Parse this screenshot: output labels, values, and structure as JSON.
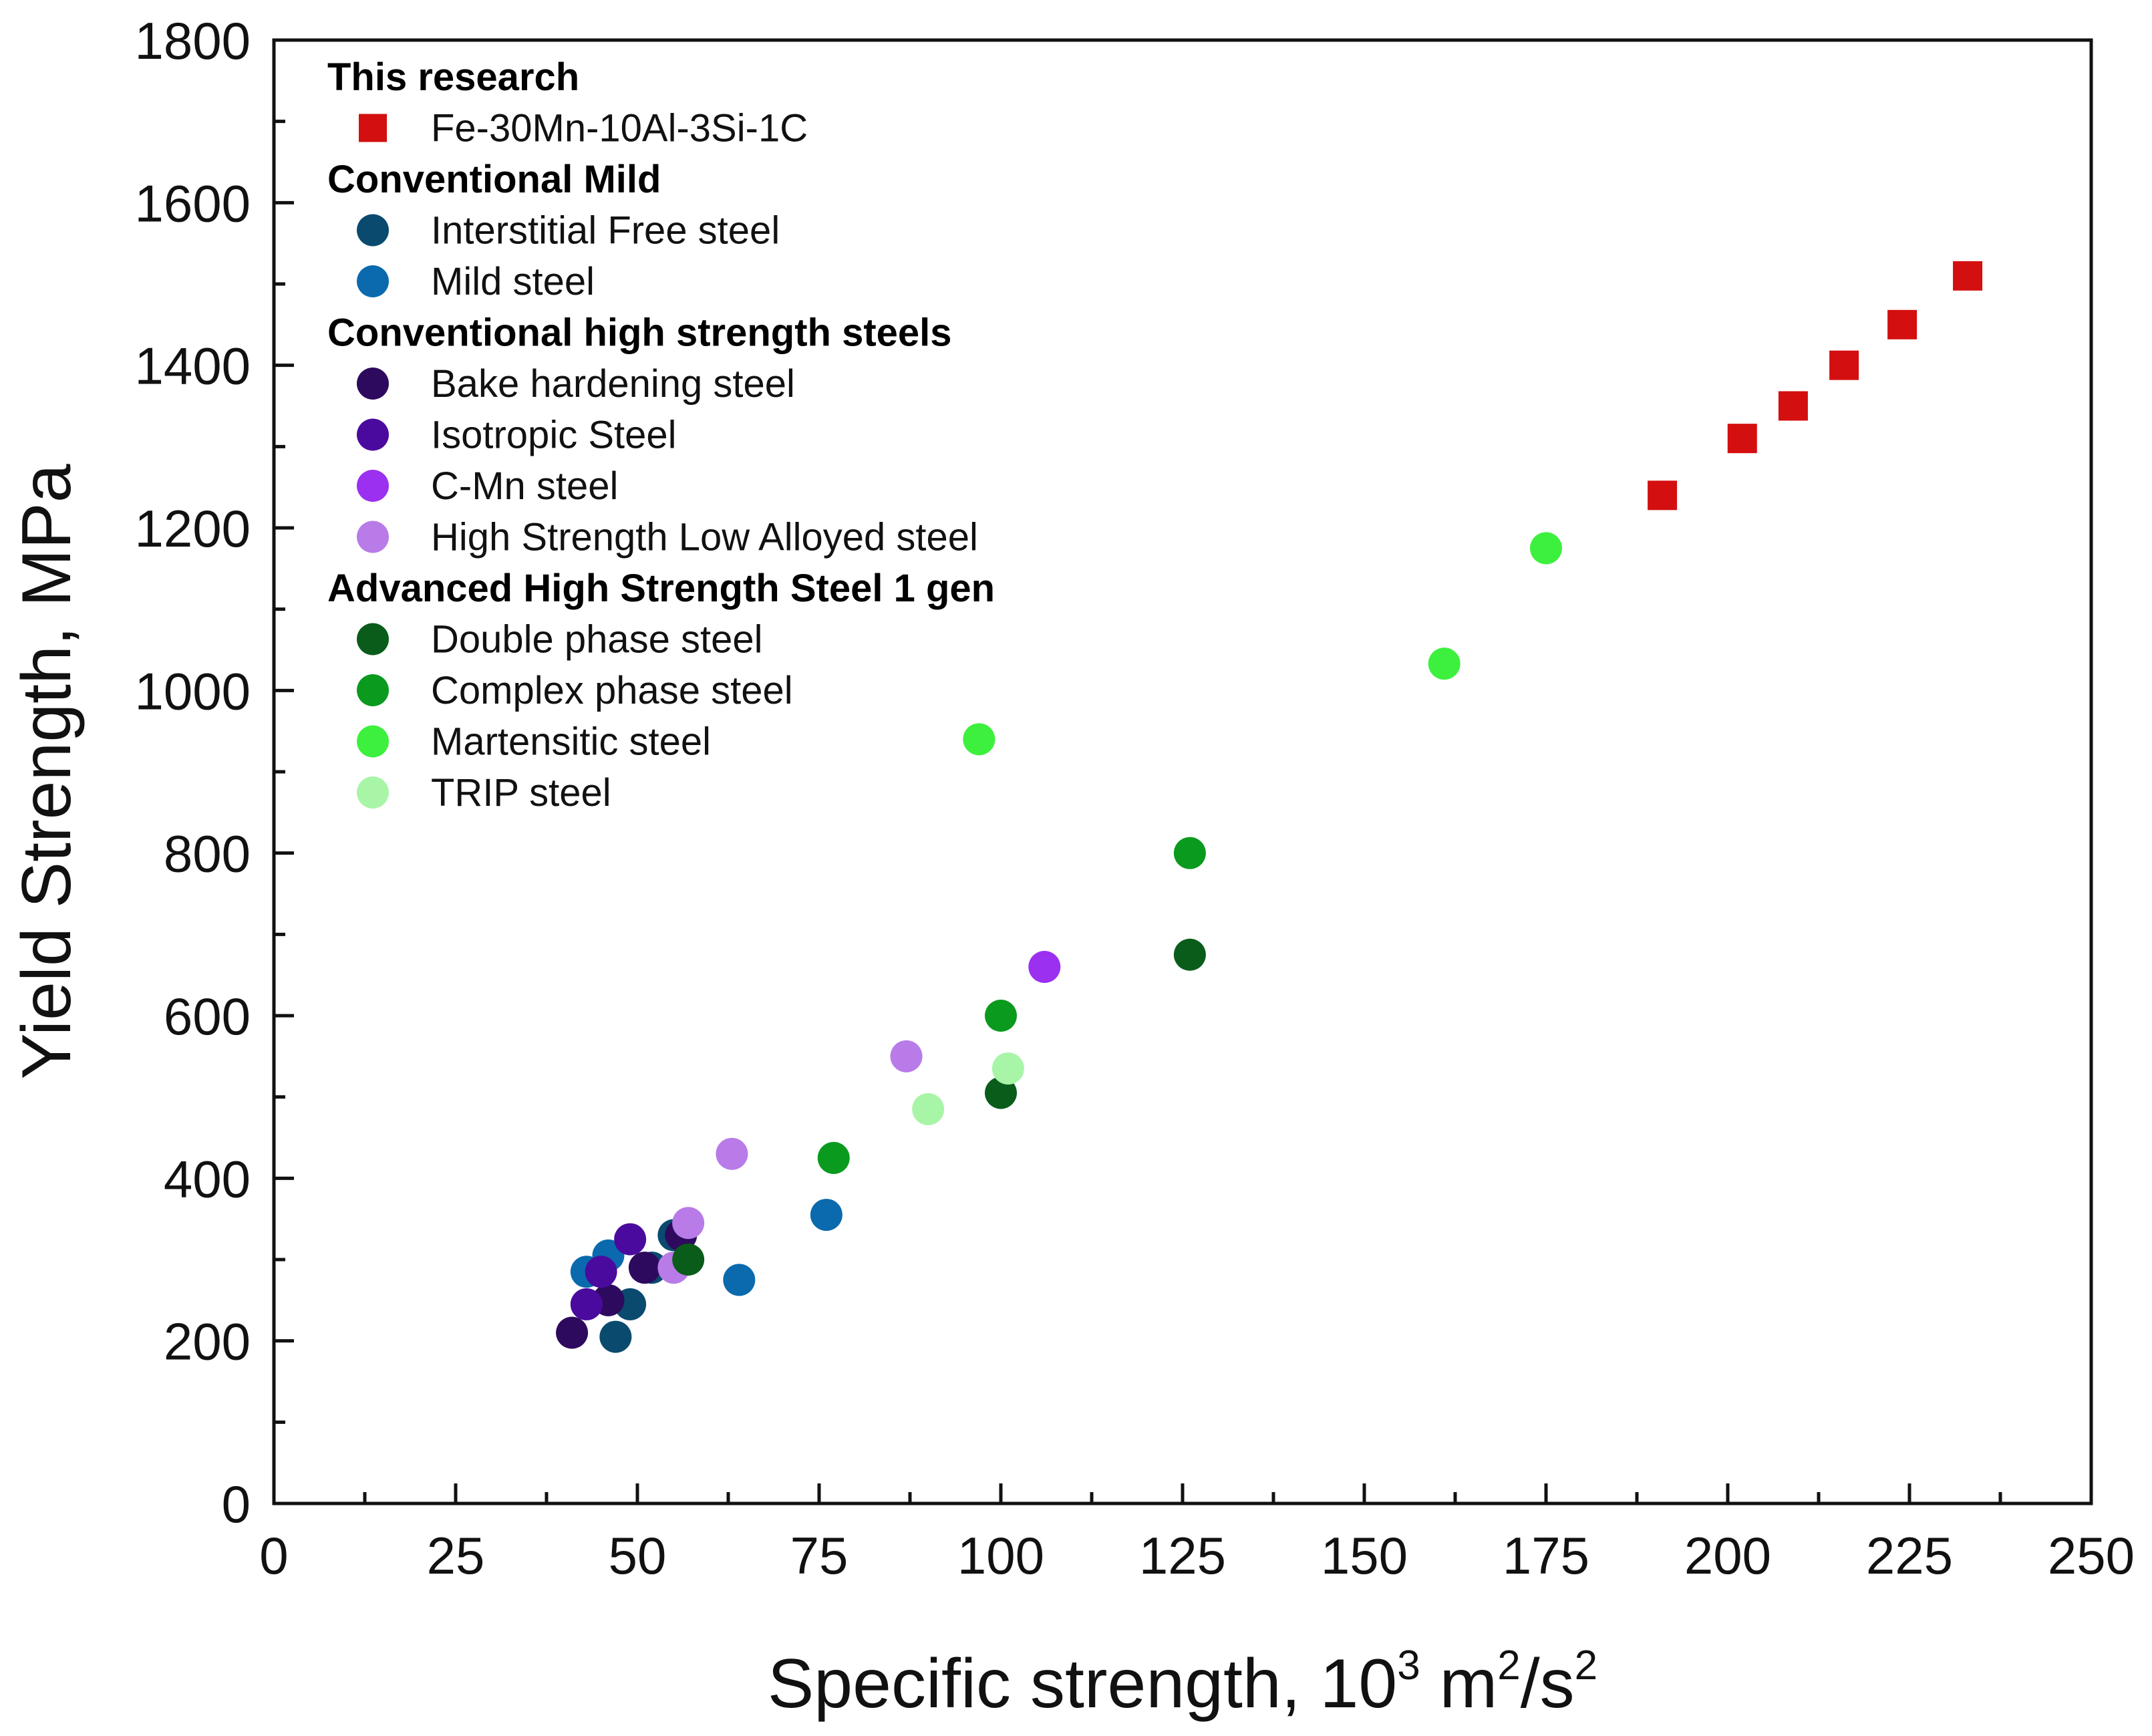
{
  "chart_data": {
    "type": "scatter",
    "title": "",
    "xlabel": "Specific strength, 10",
    "xlabel_sup1": "3",
    "xlabel_mid": " m",
    "xlabel_sup2": "2",
    "xlabel_mid2": "/s",
    "xlabel_sup3": "2",
    "ylabel": "Yield Strength, MPa",
    "xlim": [
      0,
      250
    ],
    "ylim": [
      0,
      1800
    ],
    "xticks": [
      0,
      25,
      50,
      75,
      100,
      125,
      150,
      175,
      200,
      225,
      250
    ],
    "yticks": [
      0,
      200,
      400,
      600,
      800,
      1000,
      1200,
      1400,
      1600,
      1800
    ],
    "xtick_labels": [
      "0",
      "25",
      "50",
      "75",
      "100",
      "125",
      "150",
      "175",
      "200",
      "225",
      "250"
    ],
    "ytick_labels": [
      "0",
      "200",
      "400",
      "600",
      "800",
      "1000",
      "1200",
      "1400",
      "1600",
      "1800"
    ],
    "legend_position": "top-left",
    "groups": [
      {
        "name": "This research",
        "series": [
          {
            "name": "Fe-30Mn-10Al-3Si-1C",
            "marker": "square",
            "color": "#d40f0f",
            "points": [
              [
                191,
                1240
              ],
              [
                202,
                1310
              ],
              [
                209,
                1350
              ],
              [
                216,
                1400
              ],
              [
                224,
                1450
              ],
              [
                233,
                1510
              ]
            ]
          }
        ]
      },
      {
        "name": "Conventional Mild",
        "series": [
          {
            "name": "Interstitial Free steel",
            "marker": "circle",
            "color": "#0a4a6e",
            "points": [
              [
                47,
                205
              ],
              [
                49,
                245
              ],
              [
                52,
                290
              ],
              [
                55,
                330
              ]
            ]
          },
          {
            "name": "Mild steel",
            "marker": "circle",
            "color": "#0a6aad",
            "points": [
              [
                43,
                285
              ],
              [
                46,
                305
              ],
              [
                64,
                275
              ],
              [
                76,
                355
              ]
            ]
          }
        ]
      },
      {
        "name": "Conventional high strength steels",
        "series": [
          {
            "name": "Bake hardening steel",
            "marker": "circle",
            "color": "#2d0a5e",
            "points": [
              [
                41,
                210
              ],
              [
                46,
                250
              ],
              [
                51,
                290
              ],
              [
                56,
                330
              ]
            ]
          },
          {
            "name": "Isotropic Steel",
            "marker": "circle",
            "color": "#4b0a9e",
            "points": [
              [
                43,
                245
              ],
              [
                45,
                285
              ],
              [
                49,
                325
              ]
            ]
          },
          {
            "name": "C-Mn steel",
            "marker": "circle",
            "color": "#9b30f0",
            "points": [
              [
                106,
                660
              ]
            ]
          },
          {
            "name": "High Strength Low Alloyed steel",
            "marker": "circle",
            "color": "#b87be8",
            "points": [
              [
                55,
                290
              ],
              [
                57,
                345
              ],
              [
                63,
                430
              ],
              [
                87,
                550
              ]
            ]
          }
        ]
      },
      {
        "name": "Advanced High Strength Steel 1 gen",
        "series": [
          {
            "name": "Double phase steel",
            "marker": "circle",
            "color": "#0a5c1a",
            "points": [
              [
                57,
                300
              ],
              [
                100,
                505
              ],
              [
                126,
                675
              ]
            ]
          },
          {
            "name": "Complex phase steel",
            "marker": "circle",
            "color": "#0a9a1e",
            "points": [
              [
                77,
                425
              ],
              [
                100,
                600
              ],
              [
                126,
                800
              ]
            ]
          },
          {
            "name": "Martensitic steel",
            "marker": "circle",
            "color": "#3df03d",
            "points": [
              [
                97,
                940
              ],
              [
                161,
                1033
              ],
              [
                175,
                1175
              ]
            ]
          },
          {
            "name": "TRIP steel",
            "marker": "circle",
            "color": "#a8f5a8",
            "points": [
              [
                90,
                485
              ],
              [
                101,
                535
              ]
            ]
          }
        ]
      }
    ]
  }
}
